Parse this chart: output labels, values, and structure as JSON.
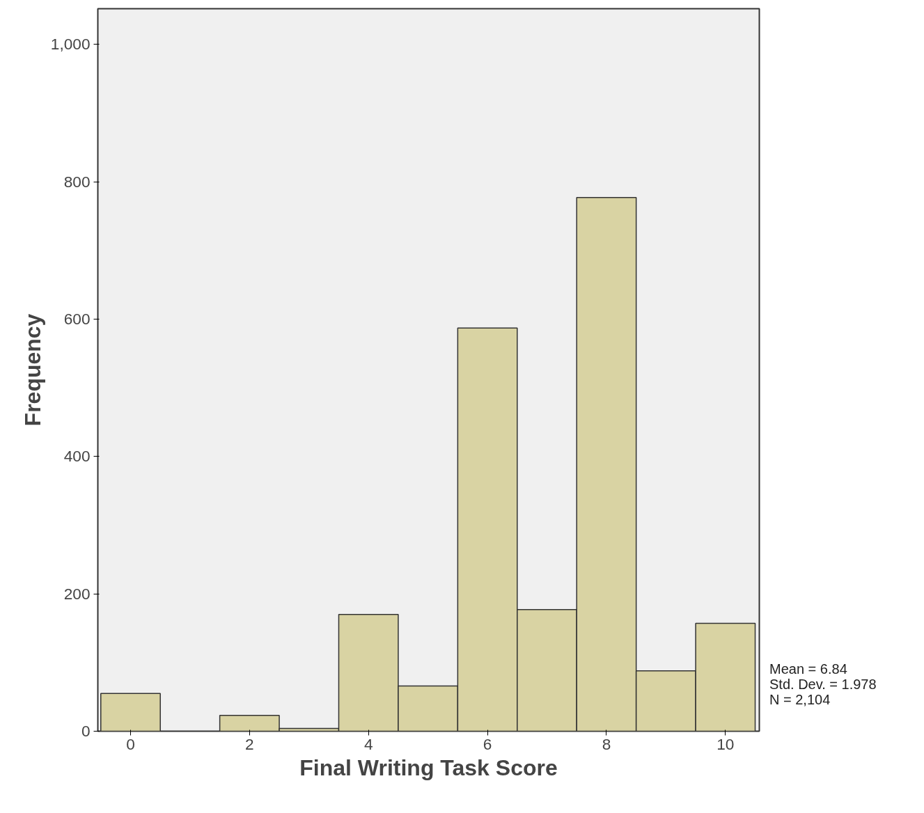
{
  "chart_data": {
    "type": "histogram",
    "xlabel": "Final Writing Task Score",
    "ylabel": "Frequency",
    "bins": [
      -0.5,
      0.5,
      1.5,
      2.5,
      3.5,
      4.5,
      5.5,
      6.5,
      7.5,
      8.5,
      9.5,
      10.5
    ],
    "values": [
      55,
      0,
      23,
      4,
      170,
      66,
      587,
      177,
      777,
      88,
      157
    ],
    "color": "#d9d3a3",
    "xlim": [
      -0.55,
      10.57
    ],
    "ylim": [
      0,
      1052
    ],
    "xticks": [
      0,
      2,
      4,
      6,
      8,
      10
    ],
    "yticks": [
      0,
      200,
      400,
      600,
      800,
      {
        "value": 1000,
        "label": "1,000"
      }
    ],
    "grid": false,
    "annotations": [
      "Mean = 6.84",
      "Std. Dev. = 1.978",
      "N = 2,104"
    ]
  }
}
